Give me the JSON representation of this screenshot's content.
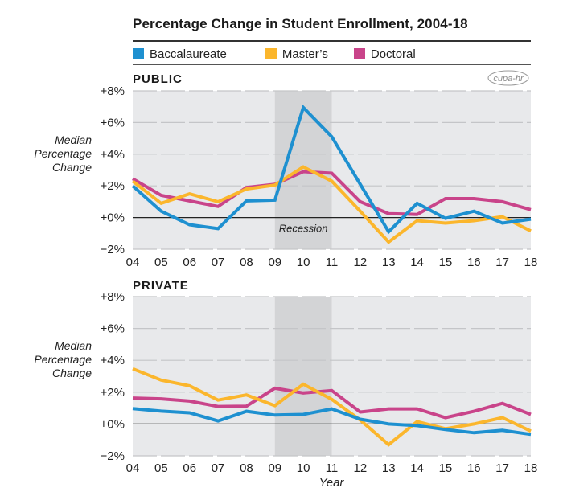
{
  "logo_text": "cupa-hr",
  "colors": {
    "baccalaureate": "#1E90D0",
    "masters": "#FBB62C",
    "doctoral": "#C9448A",
    "plot_bg": "#E8E9EB",
    "recession_bg": "#D3D4D6"
  },
  "chart_data": [
    {
      "type": "line",
      "title": "Percentage Change in Student Enrollment, 2004-18",
      "panel": "PUBLIC",
      "xlabel": "",
      "ylabel": "Median Percentage Change",
      "categories": [
        "04",
        "05",
        "06",
        "07",
        "08",
        "09",
        "10",
        "11",
        "12",
        "13",
        "14",
        "15",
        "16",
        "17",
        "18"
      ],
      "ylim": [
        -2,
        8
      ],
      "yticks": [
        -2,
        0,
        2,
        4,
        6,
        8
      ],
      "ytick_labels": [
        "−2%",
        "+0%",
        "+2%",
        "+4%",
        "+6%",
        "+8%"
      ],
      "grid": true,
      "legend": "top",
      "shaded_region": {
        "from": "09",
        "to": "11",
        "label": "Recession"
      },
      "series": [
        {
          "name": "Baccalaureate",
          "color": "#1E90D0",
          "values": [
            2.0,
            0.4,
            -0.45,
            -0.7,
            1.05,
            1.1,
            6.95,
            5.1,
            2.1,
            -0.9,
            0.9,
            -0.05,
            0.4,
            -0.35,
            -0.1
          ]
        },
        {
          "name": "Master’s",
          "color": "#FBB62C",
          "values": [
            2.3,
            0.9,
            1.5,
            1.0,
            1.8,
            2.05,
            3.2,
            2.3,
            0.4,
            -1.55,
            -0.2,
            -0.35,
            -0.2,
            0.05,
            -0.85
          ]
        },
        {
          "name": "Doctoral",
          "color": "#C9448A",
          "values": [
            2.45,
            1.4,
            1.05,
            0.7,
            1.9,
            2.1,
            2.9,
            2.8,
            1.0,
            0.25,
            0.2,
            1.2,
            1.2,
            1.0,
            0.5
          ]
        }
      ]
    },
    {
      "type": "line",
      "panel": "PRIVATE",
      "xlabel": "Year",
      "ylabel": "Median Percentage Change",
      "categories": [
        "04",
        "05",
        "06",
        "07",
        "08",
        "09",
        "10",
        "11",
        "12",
        "13",
        "14",
        "15",
        "16",
        "17",
        "18"
      ],
      "ylim": [
        -2,
        8
      ],
      "yticks": [
        -2,
        0,
        2,
        4,
        6,
        8
      ],
      "ytick_labels": [
        "−2%",
        "+0%",
        "+2%",
        "+4%",
        "+6%",
        "+8%"
      ],
      "grid": true,
      "shaded_region": {
        "from": "09",
        "to": "11",
        "label": ""
      },
      "series": [
        {
          "name": "Baccalaureate",
          "color": "#1E90D0",
          "values": [
            0.97,
            0.81,
            0.7,
            0.19,
            0.8,
            0.56,
            0.6,
            0.95,
            0.3,
            0.0,
            -0.1,
            -0.35,
            -0.55,
            -0.4,
            -0.65
          ]
        },
        {
          "name": "Master’s",
          "color": "#FBB62C",
          "values": [
            3.47,
            2.76,
            2.4,
            1.5,
            1.83,
            1.15,
            2.5,
            1.55,
            0.25,
            -1.3,
            0.15,
            -0.3,
            0.0,
            0.4,
            -0.45
          ]
        },
        {
          "name": "Doctoral",
          "color": "#C9448A",
          "values": [
            1.63,
            1.58,
            1.44,
            1.1,
            1.12,
            2.25,
            1.95,
            2.1,
            0.75,
            0.95,
            0.95,
            0.4,
            0.8,
            1.3,
            0.6
          ]
        }
      ]
    }
  ]
}
